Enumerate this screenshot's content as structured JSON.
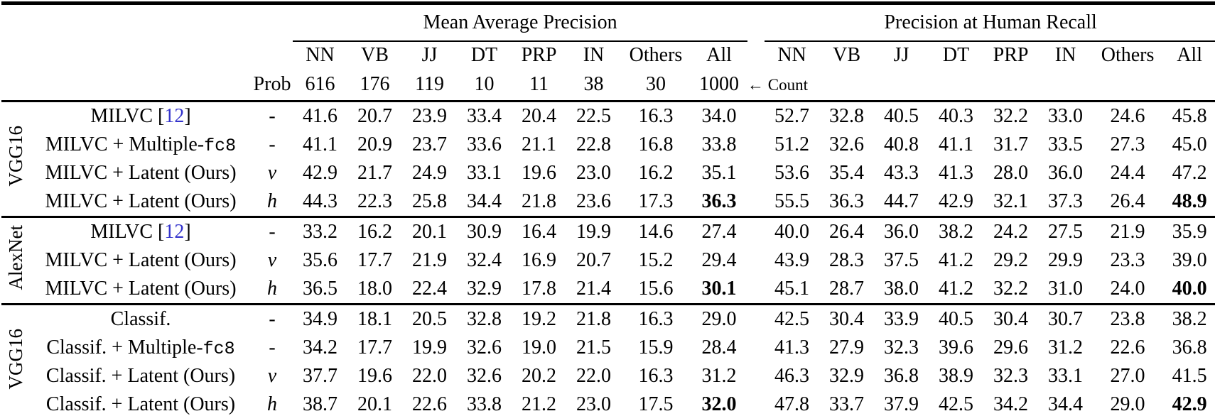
{
  "colors": {
    "citation": "#3333cc",
    "text": "#000000",
    "rule": "#000000"
  },
  "header": {
    "group1": "Mean Average Precision",
    "group2": "Precision at Human Recall",
    "subcols": [
      "NN",
      "VB",
      "JJ",
      "DT",
      "PRP",
      "IN",
      "Others",
      "All"
    ],
    "counts": [
      "616",
      "176",
      "119",
      "10",
      "11",
      "38",
      "30",
      "1000"
    ],
    "prob_label": "Prob",
    "count_note": "← Count"
  },
  "groups": [
    {
      "label": "VGG16",
      "rows": [
        {
          "label_parts": [
            {
              "t": "MILVC [",
              "s": "plain"
            },
            {
              "t": "12",
              "s": "cite"
            },
            {
              "t": "]",
              "s": "plain"
            }
          ],
          "prob": "-",
          "map": [
            "41.6",
            "20.7",
            "23.9",
            "33.4",
            "20.4",
            "22.5",
            "16.3",
            "34.0"
          ],
          "phr": [
            "52.7",
            "32.8",
            "40.5",
            "40.3",
            "32.2",
            "33.0",
            "24.6",
            "45.8"
          ],
          "bold_all": false
        },
        {
          "label_parts": [
            {
              "t": "MILVC + Multiple-",
              "s": "plain"
            },
            {
              "t": "fc8",
              "s": "mono"
            }
          ],
          "prob": "-",
          "map": [
            "41.1",
            "20.9",
            "23.7",
            "33.6",
            "21.1",
            "22.8",
            "16.8",
            "33.8"
          ],
          "phr": [
            "51.2",
            "32.6",
            "40.8",
            "41.1",
            "31.7",
            "33.5",
            "27.3",
            "45.0"
          ],
          "bold_all": false
        },
        {
          "label_parts": [
            {
              "t": "MILVC + Latent (Ours)",
              "s": "plain"
            }
          ],
          "prob": "v",
          "map": [
            "42.9",
            "21.7",
            "24.9",
            "33.1",
            "19.6",
            "23.0",
            "16.2",
            "35.1"
          ],
          "phr": [
            "53.6",
            "35.4",
            "43.3",
            "41.3",
            "28.0",
            "36.0",
            "24.4",
            "47.2"
          ],
          "bold_all": false
        },
        {
          "label_parts": [
            {
              "t": "MILVC + Latent (Ours)",
              "s": "plain"
            }
          ],
          "prob": "h",
          "map": [
            "44.3",
            "22.3",
            "25.8",
            "34.4",
            "21.8",
            "23.6",
            "17.3",
            "36.3"
          ],
          "phr": [
            "55.5",
            "36.3",
            "44.7",
            "42.9",
            "32.1",
            "37.3",
            "26.4",
            "48.9"
          ],
          "bold_all": true
        }
      ]
    },
    {
      "label": "AlexNet",
      "rows": [
        {
          "label_parts": [
            {
              "t": "MILVC [",
              "s": "plain"
            },
            {
              "t": "12",
              "s": "cite"
            },
            {
              "t": "]",
              "s": "plain"
            }
          ],
          "prob": "-",
          "map": [
            "33.2",
            "16.2",
            "20.1",
            "30.9",
            "16.4",
            "19.9",
            "14.6",
            "27.4"
          ],
          "phr": [
            "40.0",
            "26.4",
            "36.0",
            "38.2",
            "24.2",
            "27.5",
            "21.9",
            "35.9"
          ],
          "bold_all": false
        },
        {
          "label_parts": [
            {
              "t": "MILVC + Latent (Ours)",
              "s": "plain"
            }
          ],
          "prob": "v",
          "map": [
            "35.6",
            "17.7",
            "21.9",
            "32.4",
            "16.9",
            "20.7",
            "15.2",
            "29.4"
          ],
          "phr": [
            "43.9",
            "28.3",
            "37.5",
            "41.2",
            "29.2",
            "29.9",
            "23.3",
            "39.0"
          ],
          "bold_all": false
        },
        {
          "label_parts": [
            {
              "t": "MILVC + Latent (Ours)",
              "s": "plain"
            }
          ],
          "prob": "h",
          "map": [
            "36.5",
            "18.0",
            "22.4",
            "32.9",
            "17.8",
            "21.4",
            "15.6",
            "30.1"
          ],
          "phr": [
            "45.1",
            "28.7",
            "38.0",
            "41.2",
            "32.2",
            "31.0",
            "24.0",
            "40.0"
          ],
          "bold_all": true
        }
      ]
    },
    {
      "label": "VGG16",
      "rows": [
        {
          "label_parts": [
            {
              "t": "Classif.",
              "s": "plain"
            }
          ],
          "prob": "-",
          "map": [
            "34.9",
            "18.1",
            "20.5",
            "32.8",
            "19.2",
            "21.8",
            "16.3",
            "29.0"
          ],
          "phr": [
            "42.5",
            "30.4",
            "33.9",
            "40.5",
            "30.4",
            "30.7",
            "23.8",
            "38.2"
          ],
          "bold_all": false
        },
        {
          "label_parts": [
            {
              "t": "Classif. + Multiple-",
              "s": "plain"
            },
            {
              "t": "fc8",
              "s": "mono"
            }
          ],
          "prob": "-",
          "map": [
            "34.2",
            "17.7",
            "19.9",
            "32.6",
            "19.0",
            "21.5",
            "15.9",
            "28.4"
          ],
          "phr": [
            "41.3",
            "27.9",
            "32.3",
            "39.6",
            "29.6",
            "31.2",
            "22.6",
            "36.8"
          ],
          "bold_all": false
        },
        {
          "label_parts": [
            {
              "t": "Classif. + Latent (Ours)",
              "s": "plain"
            }
          ],
          "prob": "v",
          "map": [
            "37.7",
            "19.6",
            "22.0",
            "32.6",
            "20.2",
            "22.0",
            "16.3",
            "31.2"
          ],
          "phr": [
            "46.3",
            "32.9",
            "36.8",
            "38.9",
            "32.3",
            "33.1",
            "27.0",
            "41.5"
          ],
          "bold_all": false
        },
        {
          "label_parts": [
            {
              "t": "Classif. + Latent (Ours)",
              "s": "plain"
            }
          ],
          "prob": "h",
          "map": [
            "38.7",
            "20.1",
            "22.6",
            "33.8",
            "21.2",
            "23.0",
            "17.5",
            "32.0"
          ],
          "phr": [
            "47.8",
            "33.7",
            "37.9",
            "42.5",
            "34.2",
            "34.4",
            "29.0",
            "42.9"
          ],
          "bold_all": true
        }
      ]
    }
  ]
}
